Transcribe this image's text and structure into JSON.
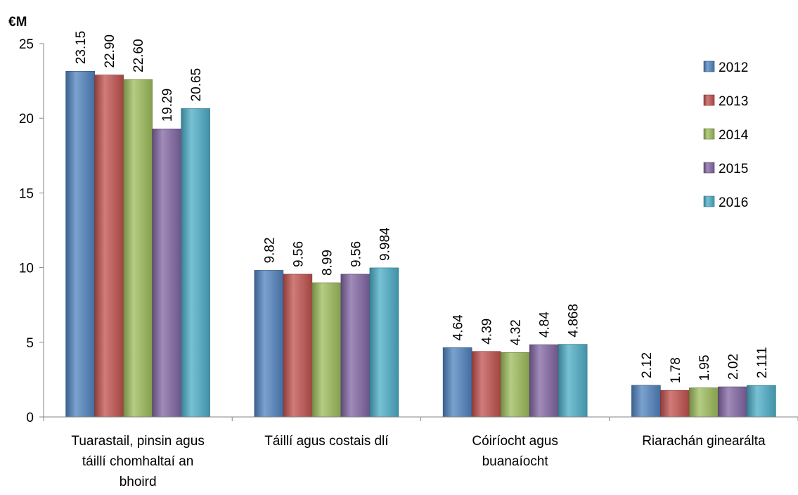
{
  "chart_data": {
    "type": "bar",
    "ylabel": "€M",
    "ylim": [
      0,
      25
    ],
    "yticks": [
      0,
      5,
      10,
      15,
      20,
      25
    ],
    "grid": false,
    "legend_position": "top-right",
    "categories": [
      [
        "Tuarastail, pinsin agus",
        "táillí chomhaltaí an",
        "bhoird"
      ],
      [
        "Táillí agus costais dlí"
      ],
      [
        "Cóiríocht agus",
        "buanaíocht"
      ],
      [
        "Riarachán ginearálta"
      ]
    ],
    "series": [
      {
        "name": "2012",
        "color": "#4F81BD",
        "values": [
          23.15,
          9.82,
          4.64,
          2.12
        ],
        "labels": [
          "23.15",
          "9.82",
          "4.64",
          "2.12"
        ]
      },
      {
        "name": "2013",
        "color": "#C0504D",
        "values": [
          22.9,
          9.56,
          4.39,
          1.78
        ],
        "labels": [
          "22.90",
          "9.56",
          "4.39",
          "1.78"
        ]
      },
      {
        "name": "2014",
        "color": "#9BBB59",
        "values": [
          22.6,
          8.99,
          4.32,
          1.95
        ],
        "labels": [
          "22.60",
          "8.99",
          "4.32",
          "1.95"
        ]
      },
      {
        "name": "2015",
        "color": "#8064A2",
        "values": [
          19.29,
          9.56,
          4.84,
          2.02
        ],
        "labels": [
          "19.29",
          "9.56",
          "4.84",
          "2.02"
        ]
      },
      {
        "name": "2016",
        "color": "#4BACC6",
        "values": [
          20.65,
          9.984,
          4.868,
          2.111
        ],
        "labels": [
          "20.65",
          "9.984",
          "4.868",
          "2.111"
        ]
      }
    ]
  }
}
